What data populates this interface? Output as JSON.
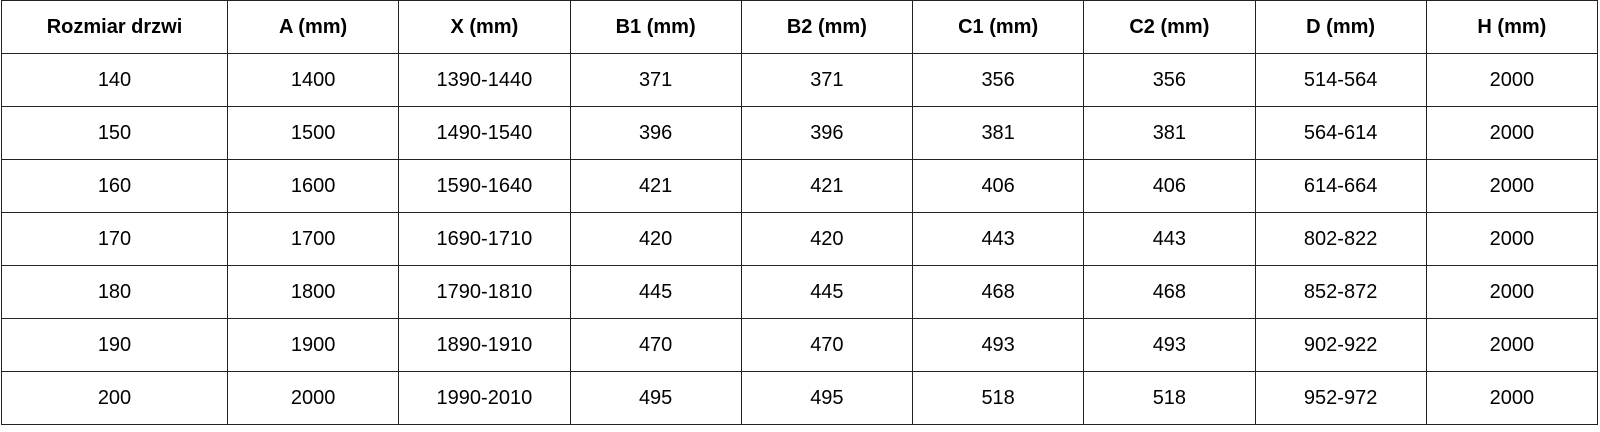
{
  "table": {
    "headers": [
      "Rozmiar drzwi",
      "A (mm)",
      "X (mm)",
      "B1 (mm)",
      "B2 (mm)",
      "C1 (mm)",
      "C2 (mm)",
      "D (mm)",
      "H (mm)"
    ],
    "rows": [
      [
        "140",
        "1400",
        "1390-1440",
        "371",
        "371",
        "356",
        "356",
        "514-564",
        "2000"
      ],
      [
        "150",
        "1500",
        "1490-1540",
        "396",
        "396",
        "381",
        "381",
        "564-614",
        "2000"
      ],
      [
        "160",
        "1600",
        "1590-1640",
        "421",
        "421",
        "406",
        "406",
        "614-664",
        "2000"
      ],
      [
        "170",
        "1700",
        "1690-1710",
        "420",
        "420",
        "443",
        "443",
        "802-822",
        "2000"
      ],
      [
        "180",
        "1800",
        "1790-1810",
        "445",
        "445",
        "468",
        "468",
        "852-872",
        "2000"
      ],
      [
        "190",
        "1900",
        "1890-1910",
        "470",
        "470",
        "493",
        "493",
        "902-922",
        "2000"
      ],
      [
        "200",
        "2000",
        "1990-2010",
        "495",
        "495",
        "518",
        "518",
        "952-972",
        "2000"
      ]
    ]
  }
}
